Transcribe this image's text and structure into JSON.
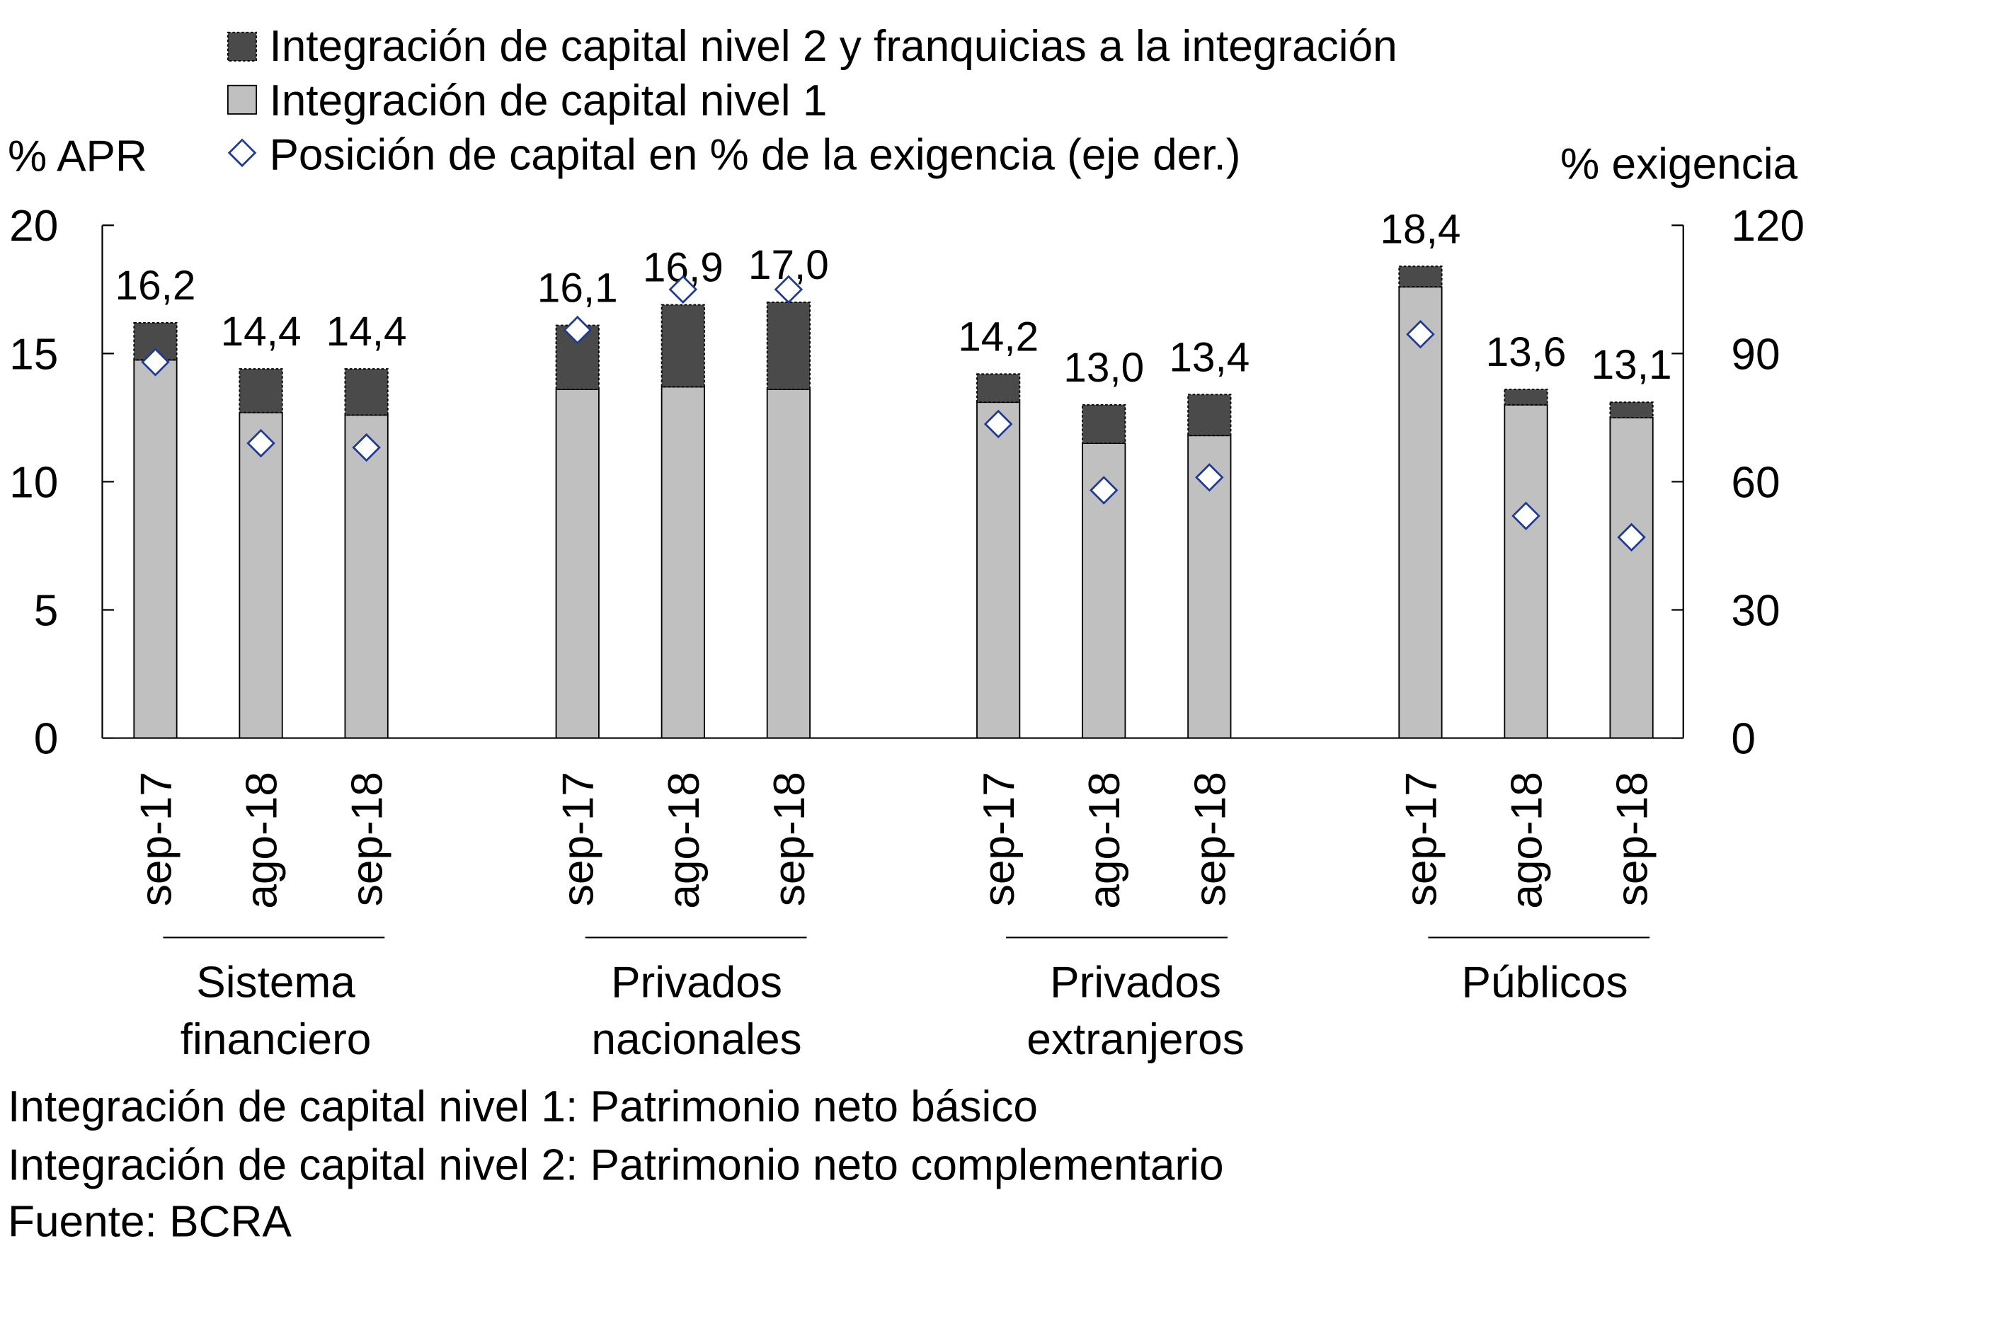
{
  "chart_data": {
    "type": "bar",
    "stacked": true,
    "legend": [
      {
        "label": "Integración de capital nivel 2 y franquicias a la integración",
        "color": "#4a4a4a",
        "marker": "square"
      },
      {
        "label": "Integración de capital nivel 1",
        "color": "#c0c0c0",
        "marker": "square"
      },
      {
        "label": "Posición de capital en % de la exigencia (eje der.)",
        "color": "#1f3a93",
        "marker": "diamond"
      }
    ],
    "legend_position": "top",
    "ylabel_left": "% APR",
    "ylabel_right": "% exigencia",
    "ylim_left": [
      0,
      20
    ],
    "ylim_right": [
      0,
      120
    ],
    "yticks_left": [
      "0",
      "5",
      "10",
      "15",
      "20"
    ],
    "yticks_right": [
      "0",
      "30",
      "60",
      "90",
      "120"
    ],
    "groups": [
      {
        "label_lines": [
          "Sistema",
          "financiero"
        ],
        "categories": [
          "sep-17",
          "ago-18",
          "sep-18"
        ],
        "tier1": [
          14.75,
          12.7,
          12.6
        ],
        "total": [
          16.2,
          14.4,
          14.4
        ],
        "total_labels": [
          "16,2",
          "14,4",
          "14,4"
        ],
        "position_pct": [
          88,
          69,
          68
        ]
      },
      {
        "label_lines": [
          "Privados",
          "nacionales"
        ],
        "categories": [
          "sep-17",
          "ago-18",
          "sep-18"
        ],
        "tier1": [
          13.6,
          13.7,
          13.6
        ],
        "total": [
          16.1,
          16.9,
          17.0
        ],
        "total_labels": [
          "16,1",
          "16,9",
          "17,0"
        ],
        "position_pct": [
          95.5,
          105,
          105
        ]
      },
      {
        "label_lines": [
          "Privados",
          "extranjeros"
        ],
        "categories": [
          "sep-17",
          "ago-18",
          "sep-18"
        ],
        "tier1": [
          13.1,
          11.5,
          11.8
        ],
        "total": [
          14.2,
          13.0,
          13.4
        ],
        "total_labels": [
          "14,2",
          "13,0",
          "13,4"
        ],
        "position_pct": [
          73.5,
          58,
          61
        ]
      },
      {
        "label_lines": [
          "Públicos",
          ""
        ],
        "categories": [
          "sep-17",
          "ago-18",
          "sep-18"
        ],
        "tier1": [
          17.6,
          13.0,
          12.5
        ],
        "total": [
          18.4,
          13.6,
          13.1
        ],
        "total_labels": [
          "18,4",
          "13,6",
          "13,1"
        ],
        "position_pct": [
          94.5,
          52,
          47
        ]
      }
    ],
    "footnotes": [
      "Integración de capital nivel 1: Patrimonio neto básico",
      "Integración de capital nivel 2: Patrimonio neto complementario",
      "Fuente: BCRA"
    ]
  }
}
